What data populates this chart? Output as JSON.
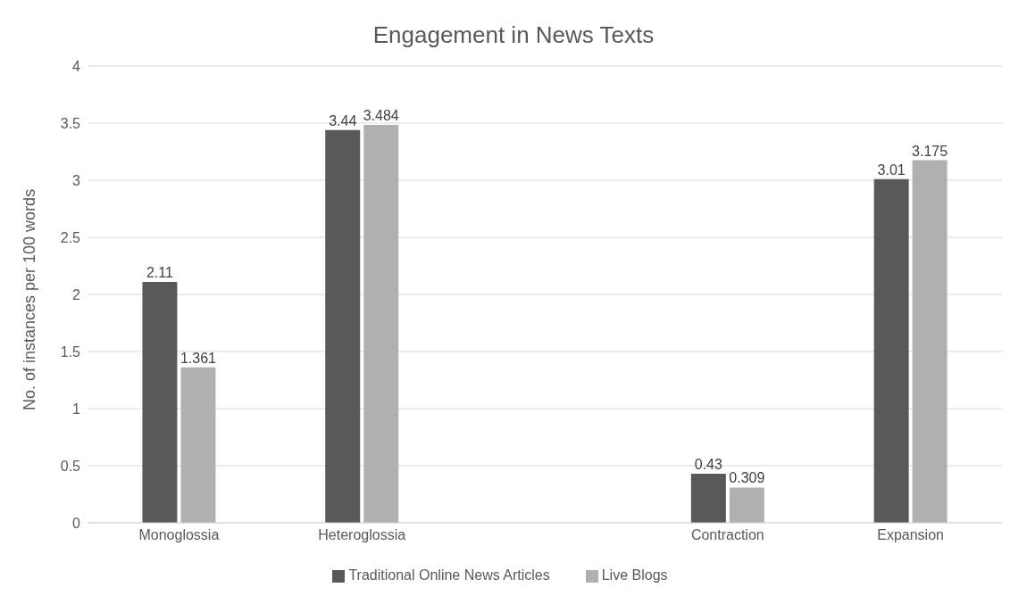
{
  "chart_data": {
    "type": "bar",
    "title": "Engagement in News Texts",
    "ylabel": "No. of instances per 100 words",
    "categories": [
      "Monoglossia",
      "Heteroglossia",
      null,
      "Contraction",
      "Expansion"
    ],
    "series": [
      {
        "name": "Traditional Online News Articles",
        "color": "#595959",
        "values": [
          2.11,
          3.44,
          null,
          0.43,
          3.01
        ]
      },
      {
        "name": "Live Blogs",
        "color": "#b0b0b0",
        "values": [
          1.361,
          3.484,
          null,
          0.309,
          3.175
        ]
      }
    ],
    "ylim": [
      0,
      4
    ],
    "yticks": [
      0,
      0.5,
      1,
      1.5,
      2,
      2.5,
      3,
      3.5,
      4
    ],
    "grid": "y",
    "legend": "bottom",
    "data_labels": true
  }
}
